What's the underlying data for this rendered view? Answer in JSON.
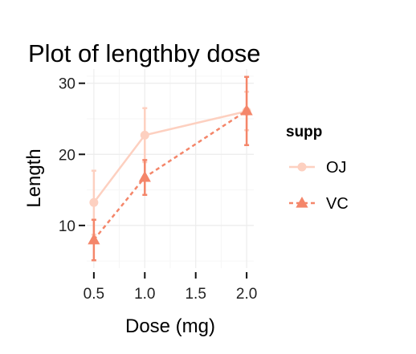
{
  "chart_data": {
    "type": "line",
    "title": "Plot of lengthby dose",
    "xlabel": "Dose (mg)",
    "ylabel": "Length",
    "x": [
      0.5,
      1.0,
      2.0
    ],
    "xticks": [
      0.5,
      1.0,
      1.5,
      2.0
    ],
    "xtick_labels": [
      "0.5",
      "1.0",
      "1.5",
      "2.0"
    ],
    "yticks": [
      10,
      20,
      30
    ],
    "ytick_labels": [
      "10",
      "20",
      "30"
    ],
    "xlim": [
      0.43,
      2.07
    ],
    "ylim": [
      4.0,
      32.0
    ],
    "grid": true,
    "legend": {
      "title": "supp",
      "position": "right"
    },
    "series": [
      {
        "name": "OJ",
        "values": [
          13.23,
          22.7,
          26.06
        ],
        "error_low": [
          8.7,
          18.9,
          23.4
        ],
        "error_high": [
          17.7,
          26.5,
          28.8
        ],
        "color": "#fdd0c0",
        "line": "solid",
        "marker": "circle"
      },
      {
        "name": "VC",
        "values": [
          7.98,
          16.77,
          26.14
        ],
        "error_low": [
          5.1,
          14.3,
          21.3
        ],
        "error_high": [
          10.8,
          19.2,
          30.9
        ],
        "color": "#f4866a",
        "line": "dashed",
        "marker": "triangle"
      }
    ]
  }
}
